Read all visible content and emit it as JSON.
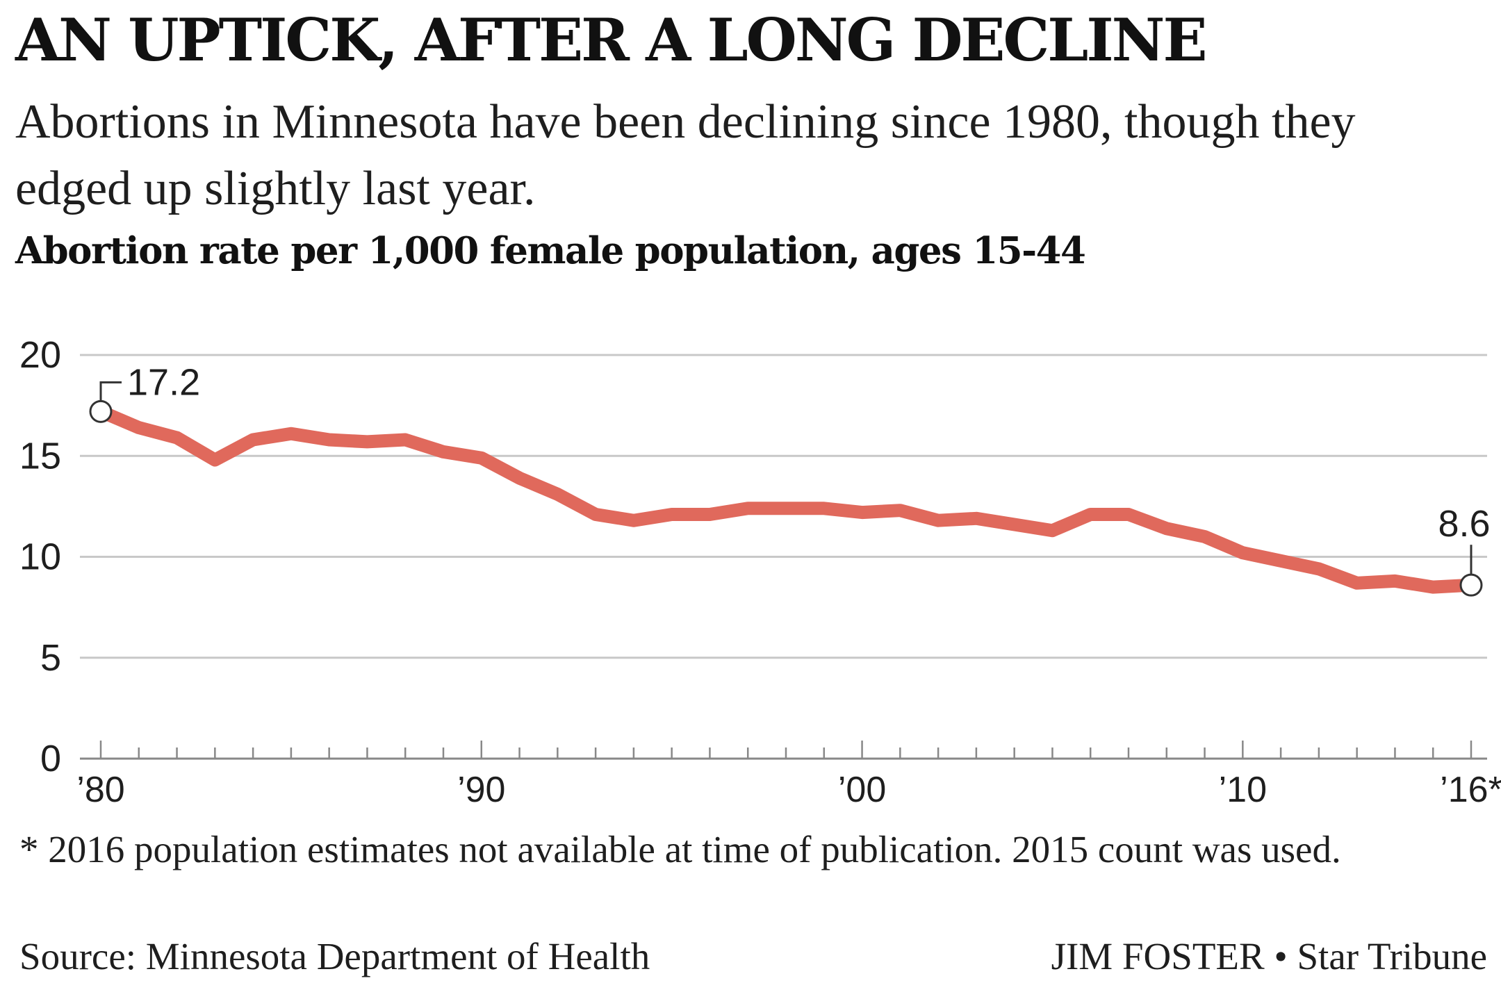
{
  "title": "AN UPTICK, AFTER A LONG DECLINE",
  "subtitle": "Abortions in Minnesota have been declining since 1980, though they edged up slightly last year.",
  "measure_label": "Abortion rate per 1,000 female population, ages 15-44",
  "footnote": "* 2016 population estimates not available at time of publication. 2015 count was used.",
  "source": "Source: Minnesota Department of Health",
  "credit": "JIM FOSTER • Star Tribune",
  "colors": {
    "line": "#e0695c",
    "grid": "#c8c8c8",
    "axis": "#888888",
    "text": "#1e1e1e"
  },
  "chart_data": {
    "type": "line",
    "xlabel": "",
    "ylabel": "",
    "ylim": [
      0,
      20
    ],
    "xlim": [
      1980,
      2016
    ],
    "grid": true,
    "y_ticks": [
      0,
      5,
      10,
      15,
      20
    ],
    "x_tick_labels": [
      {
        "x": 1980,
        "label": "’80"
      },
      {
        "x": 1990,
        "label": "’90"
      },
      {
        "x": 2000,
        "label": "’00"
      },
      {
        "x": 2010,
        "label": "’10"
      },
      {
        "x": 2016,
        "label": "’16*"
      }
    ],
    "series": [
      {
        "x": [
          1980,
          1981,
          1982,
          1983,
          1984,
          1985,
          1986,
          1987,
          1988,
          1989,
          1990,
          1991,
          1992,
          1993,
          1994,
          1995,
          1996,
          1997,
          1998,
          1999,
          2000,
          2001,
          2002,
          2003,
          2004,
          2005,
          2006,
          2007,
          2008,
          2009,
          2010,
          2011,
          2012,
          2013,
          2014,
          2015,
          2016
        ],
        "values": [
          17.2,
          16.4,
          15.9,
          14.8,
          15.8,
          16.1,
          15.8,
          15.7,
          15.8,
          15.2,
          14.9,
          13.9,
          13.1,
          12.1,
          11.8,
          12.1,
          12.1,
          12.4,
          12.4,
          12.4,
          12.2,
          12.3,
          11.8,
          11.9,
          11.6,
          11.3,
          12.1,
          12.1,
          11.4,
          11.0,
          10.2,
          9.8,
          9.4,
          8.7,
          8.8,
          8.5,
          8.6
        ]
      }
    ],
    "annotations": [
      {
        "x": 1980,
        "y": 17.2,
        "label": "17.2"
      },
      {
        "x": 2016,
        "y": 8.6,
        "label": "8.6"
      }
    ]
  }
}
